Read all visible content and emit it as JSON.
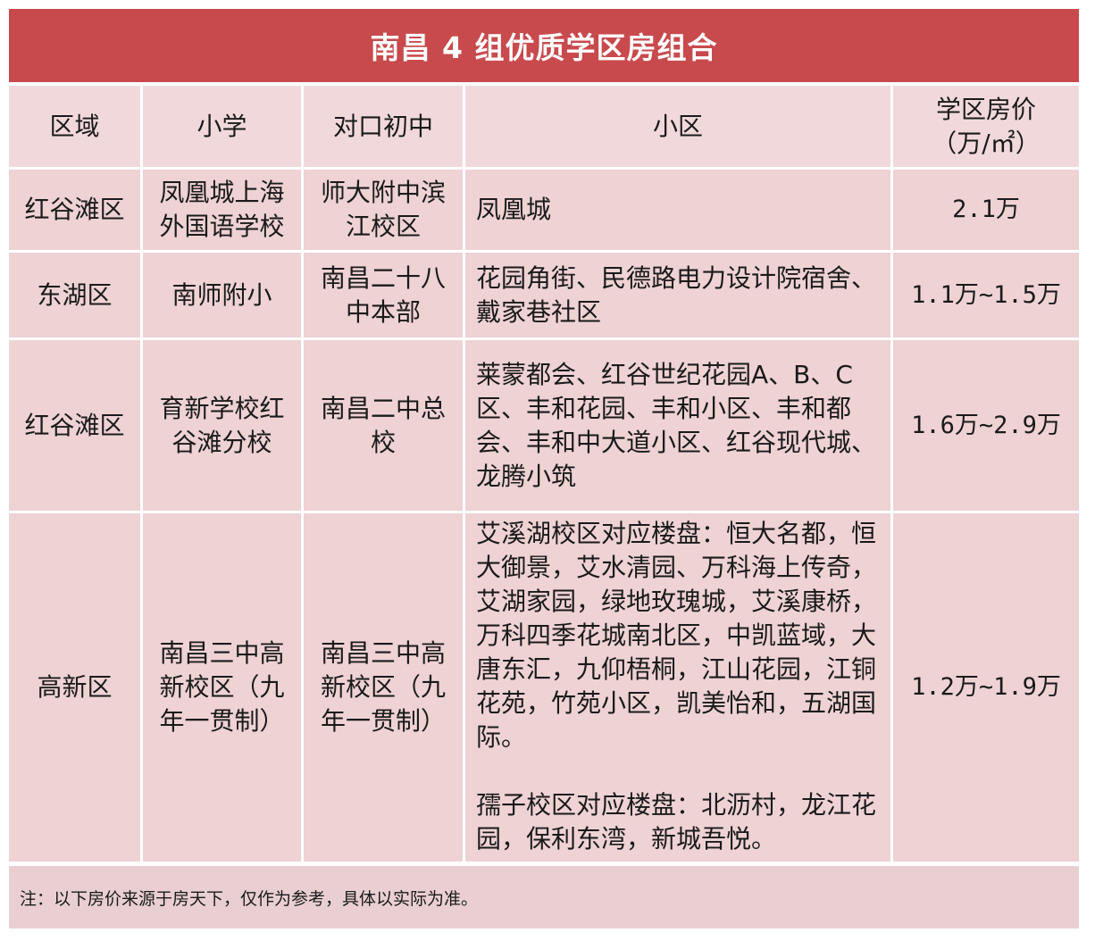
{
  "title": "南昌 4 组优质学区房组合",
  "headers": [
    "区域",
    "小学",
    "对口初中",
    "小区",
    "学区房价\n（万/㎡）"
  ],
  "rows": [
    {
      "district": "红谷滩区",
      "primary": "凤凰城上海外国语学校",
      "middle": "师大附中滨江校区",
      "communities": [
        "凤凰城"
      ],
      "price": "2.1万"
    },
    {
      "district": "东湖区",
      "primary": "南师附小",
      "middle": "南昌二十八中本部",
      "communities": [
        "花园角街、民德路电力设计院宿舍、戴家巷社区"
      ],
      "price": "1.1万~1.5万"
    },
    {
      "district": "红谷滩区",
      "primary": "育新学校红谷滩分校",
      "middle": "南昌二中总校",
      "communities": [
        "莱蒙都会、红谷世纪花园A、B、C区、丰和花园、丰和小区、丰和都会、丰和中大道小区、红谷现代城、龙腾小筑"
      ],
      "price": "1.6万~2.9万"
    },
    {
      "district": "高新区",
      "primary": "南昌三中高新校区（九年一贯制）",
      "middle": "南昌三中高新校区（九年一贯制）",
      "communities": [
        "艾溪湖校区对应楼盘：恒大名都，恒大御景，艾水清园、万科海上传奇，艾湖家园，绿地玫瑰城，艾溪康桥，万科四季花城南北区，中凯蓝域，大唐东汇，九仰梧桐，江山花园，江铜花苑，竹苑小区，凯美怡和，五湖国际。",
        "孺子校区对应楼盘：北沥村，龙江花园，保利东湾，新城吾悦。"
      ],
      "price": "1.2万~1.9万"
    }
  ],
  "note": "注：以下房价来源于房天下，仅作为参考，具体以实际为准。",
  "colors": {
    "title_bg": "#c84a4d",
    "cell_bg": "#eed2d4"
  }
}
